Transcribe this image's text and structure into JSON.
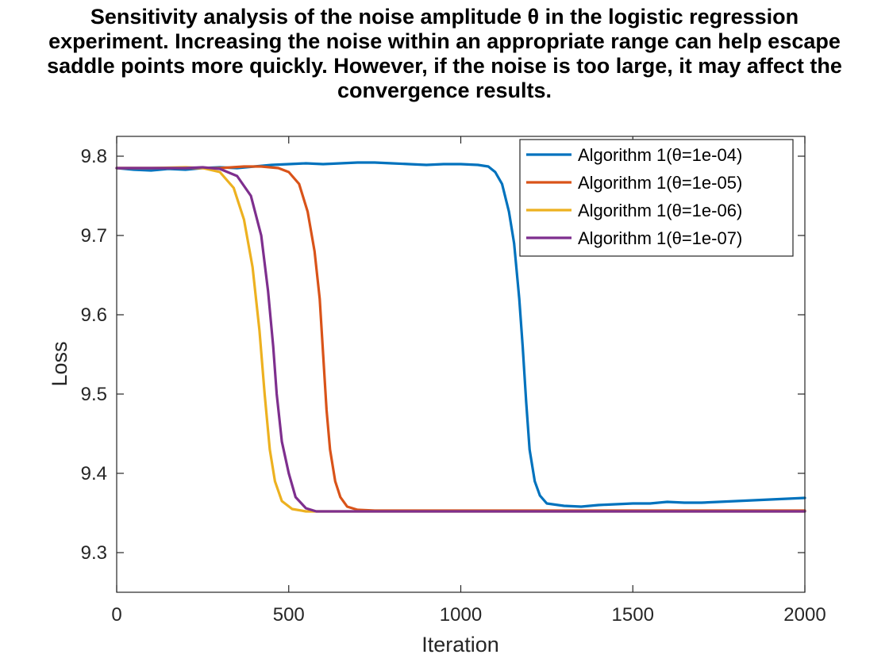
{
  "chart_data": {
    "type": "line",
    "title": "Sensitivity analysis of the noise amplitude θ in the logistic regression experiment. Increasing the noise within an appropriate range can help escape saddle points more quickly. However, if the noise is too large, it may affect the convergence results.",
    "xlabel": "Iteration",
    "ylabel": "Loss",
    "xlim": [
      0,
      2000
    ],
    "ylim": [
      9.25,
      9.825
    ],
    "xticks": [
      0,
      500,
      1000,
      1500,
      2000
    ],
    "yticks": [
      9.3,
      9.4,
      9.5,
      9.6,
      9.7,
      9.8
    ],
    "grid": false,
    "legend_position": "top-right",
    "series": [
      {
        "name": "Algorithm 1(θ=1e-04)",
        "color": "#0072BD",
        "points": [
          [
            0,
            9.785
          ],
          [
            50,
            9.783
          ],
          [
            100,
            9.782
          ],
          [
            150,
            9.784
          ],
          [
            200,
            9.783
          ],
          [
            250,
            9.785
          ],
          [
            300,
            9.786
          ],
          [
            350,
            9.785
          ],
          [
            400,
            9.787
          ],
          [
            450,
            9.789
          ],
          [
            500,
            9.79
          ],
          [
            550,
            9.791
          ],
          [
            600,
            9.79
          ],
          [
            650,
            9.791
          ],
          [
            700,
            9.792
          ],
          [
            750,
            9.792
          ],
          [
            800,
            9.791
          ],
          [
            850,
            9.79
          ],
          [
            900,
            9.789
          ],
          [
            950,
            9.79
          ],
          [
            1000,
            9.79
          ],
          [
            1050,
            9.789
          ],
          [
            1080,
            9.787
          ],
          [
            1100,
            9.78
          ],
          [
            1120,
            9.765
          ],
          [
            1140,
            9.73
          ],
          [
            1155,
            9.69
          ],
          [
            1170,
            9.62
          ],
          [
            1180,
            9.56
          ],
          [
            1190,
            9.49
          ],
          [
            1200,
            9.43
          ],
          [
            1215,
            9.39
          ],
          [
            1230,
            9.372
          ],
          [
            1250,
            9.362
          ],
          [
            1300,
            9.359
          ],
          [
            1350,
            9.358
          ],
          [
            1400,
            9.36
          ],
          [
            1450,
            9.361
          ],
          [
            1500,
            9.362
          ],
          [
            1550,
            9.362
          ],
          [
            1600,
            9.364
          ],
          [
            1650,
            9.363
          ],
          [
            1700,
            9.363
          ],
          [
            1750,
            9.364
          ],
          [
            1800,
            9.365
          ],
          [
            1850,
            9.366
          ],
          [
            1900,
            9.367
          ],
          [
            1950,
            9.368
          ],
          [
            2000,
            9.369
          ]
        ]
      },
      {
        "name": "Algorithm 1(θ=1e-05)",
        "color": "#D95319",
        "points": [
          [
            0,
            9.785
          ],
          [
            100,
            9.785
          ],
          [
            200,
            9.785
          ],
          [
            300,
            9.785
          ],
          [
            370,
            9.787
          ],
          [
            420,
            9.787
          ],
          [
            470,
            9.785
          ],
          [
            500,
            9.78
          ],
          [
            530,
            9.765
          ],
          [
            555,
            9.73
          ],
          [
            575,
            9.68
          ],
          [
            590,
            9.62
          ],
          [
            600,
            9.55
          ],
          [
            610,
            9.48
          ],
          [
            620,
            9.43
          ],
          [
            635,
            9.39
          ],
          [
            650,
            9.37
          ],
          [
            670,
            9.358
          ],
          [
            700,
            9.354
          ],
          [
            750,
            9.353
          ],
          [
            900,
            9.353
          ],
          [
            1200,
            9.353
          ],
          [
            1500,
            9.353
          ],
          [
            1800,
            9.353
          ],
          [
            2000,
            9.353
          ]
        ]
      },
      {
        "name": "Algorithm 1(θ=1e-06)",
        "color": "#EDB120",
        "points": [
          [
            0,
            9.785
          ],
          [
            100,
            9.785
          ],
          [
            200,
            9.786
          ],
          [
            250,
            9.785
          ],
          [
            300,
            9.78
          ],
          [
            340,
            9.76
          ],
          [
            370,
            9.72
          ],
          [
            395,
            9.66
          ],
          [
            415,
            9.58
          ],
          [
            430,
            9.5
          ],
          [
            445,
            9.43
          ],
          [
            460,
            9.39
          ],
          [
            480,
            9.365
          ],
          [
            510,
            9.355
          ],
          [
            550,
            9.352
          ],
          [
            600,
            9.352
          ],
          [
            800,
            9.352
          ],
          [
            1000,
            9.352
          ],
          [
            1500,
            9.352
          ],
          [
            2000,
            9.352
          ]
        ]
      },
      {
        "name": "Algorithm 1(θ=1e-07)",
        "color": "#7E2F8E",
        "points": [
          [
            0,
            9.785
          ],
          [
            100,
            9.785
          ],
          [
            200,
            9.785
          ],
          [
            250,
            9.786
          ],
          [
            300,
            9.784
          ],
          [
            350,
            9.775
          ],
          [
            390,
            9.75
          ],
          [
            420,
            9.7
          ],
          [
            440,
            9.63
          ],
          [
            455,
            9.56
          ],
          [
            465,
            9.5
          ],
          [
            480,
            9.44
          ],
          [
            500,
            9.4
          ],
          [
            520,
            9.37
          ],
          [
            550,
            9.356
          ],
          [
            580,
            9.352
          ],
          [
            650,
            9.352
          ],
          [
            800,
            9.352
          ],
          [
            1000,
            9.352
          ],
          [
            1500,
            9.352
          ],
          [
            2000,
            9.352
          ]
        ]
      }
    ]
  }
}
